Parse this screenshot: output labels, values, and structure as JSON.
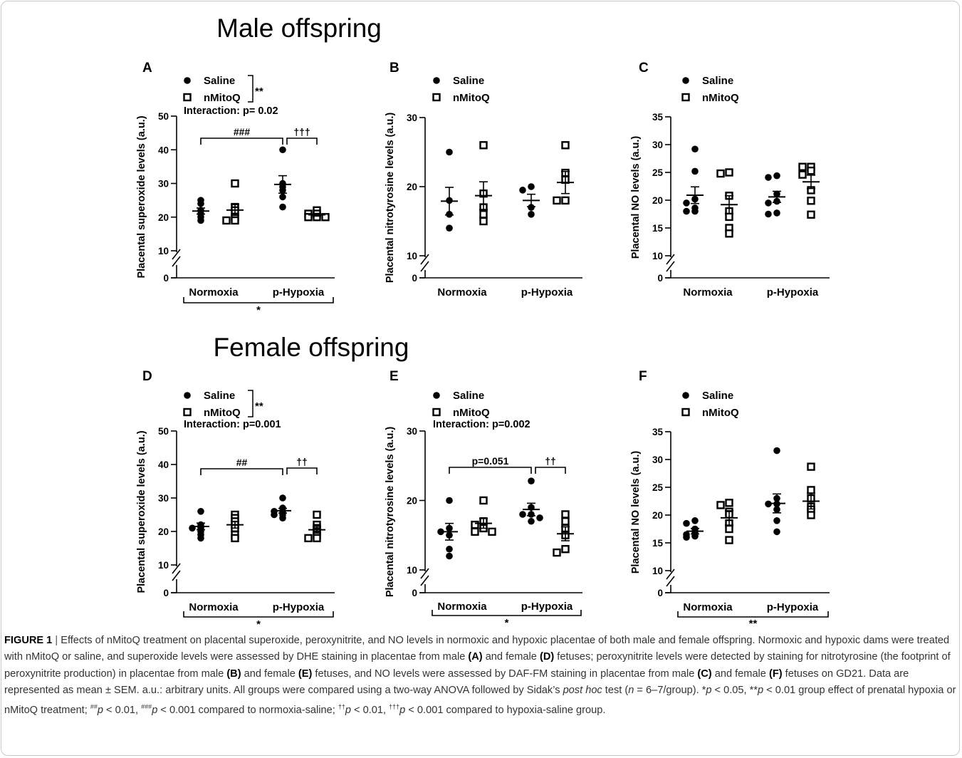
{
  "figure": {
    "sections": [
      "Male offspring",
      "Female offspring"
    ],
    "caption_label": "FIGURE 1",
    "caption_sep": "|",
    "caption_parts": [
      {
        "t": " Effects of nMitoQ treatment on placental superoxide, peroxynitrite, and NO levels in normoxic and hypoxic placentae of both male and female offspring. Normoxic and hypoxic dams were treated with nMitoQ or saline, and superoxide levels were assessed by DHE staining in placentae from male "
      },
      {
        "b": "(A)"
      },
      {
        "t": " and female "
      },
      {
        "b": "(D)"
      },
      {
        "t": " fetuses; peroxynitrite levels were detected by staining for nitrotyrosine (the footprint of peroxynitrite production) in placentae from male "
      },
      {
        "b": "(B)"
      },
      {
        "t": " and female "
      },
      {
        "b": "(E)"
      },
      {
        "t": " fetuses, and NO levels were assessed by DAF-FM staining in placentae from male "
      },
      {
        "b": "(C)"
      },
      {
        "t": " and female "
      },
      {
        "b": "(F)"
      },
      {
        "t": " fetuses on GD21. Data are represented as mean ± SEM. a.u.: arbitrary units. All groups were compared using a two-way ANOVA followed by Sidak’s "
      },
      {
        "i": "post hoc"
      },
      {
        "t": " test ("
      },
      {
        "i": "n"
      },
      {
        "t": " = 6–7/group). *"
      },
      {
        "i": "p"
      },
      {
        "t": " < 0.05, **"
      },
      {
        "i": "p"
      },
      {
        "t": " < 0.01 group effect of prenatal hypoxia or nMitoQ treatment; "
      },
      {
        "sup": "##"
      },
      {
        "i": "p"
      },
      {
        "t": " < 0.01, "
      },
      {
        "sup": "###"
      },
      {
        "i": "p"
      },
      {
        "t": " < 0.001 compared to normoxia-saline; "
      },
      {
        "sup": "††"
      },
      {
        "i": "p"
      },
      {
        "t": " < 0.01, "
      },
      {
        "sup": "†††"
      },
      {
        "i": "p"
      },
      {
        "t": " < 0.001 compared to hypoxia-saline group."
      }
    ]
  },
  "chart_data": [
    {
      "panel": "A",
      "type": "scatter",
      "section": "Male offspring",
      "ylabel": "Placental superoxide levels (a.u.)",
      "categories": [
        "Normoxia",
        "p-Hypoxia"
      ],
      "yticks": [
        0,
        10,
        20,
        30,
        40,
        50
      ],
      "axis_break": true,
      "legend": [
        "Saline",
        "nMitoQ"
      ],
      "legend_stat": "**",
      "interaction": "Interaction: p= 0.02",
      "series": [
        {
          "name": "Saline",
          "marker": "filled-circle",
          "groups": [
            {
              "category": "Normoxia",
              "points": [
                25,
                24,
                22,
                21,
                20,
                19
              ],
              "mean": 21.8,
              "sem": 0.9
            },
            {
              "category": "p-Hypoxia",
              "points": [
                40,
                30,
                29,
                28,
                26,
                23
              ],
              "mean": 29.7,
              "sem": 2.6
            }
          ]
        },
        {
          "name": "nMitoQ",
          "marker": "open-square",
          "groups": [
            {
              "category": "Normoxia",
              "points": [
                30,
                23,
                22,
                20,
                19,
                19
              ],
              "mean": 22.1,
              "sem": 1.6
            },
            {
              "category": "p-Hypoxia",
              "points": [
                22,
                21,
                21,
                20,
                20,
                20
              ],
              "mean": 20.7,
              "sem": 0.4
            }
          ]
        }
      ],
      "brackets": [
        {
          "label": "###",
          "from": "Normoxia-Saline",
          "to": "p-Hypoxia-Saline"
        },
        {
          "label": "†††",
          "from": "p-Hypoxia-Saline",
          "to": "p-Hypoxia-nMitoQ"
        }
      ],
      "group_stat": "*"
    },
    {
      "panel": "B",
      "type": "scatter",
      "section": "Male offspring",
      "ylabel": "Placental nitrotyrosine levels (a.u.)",
      "categories": [
        "Normoxia",
        "p-Hypoxia"
      ],
      "yticks": [
        0,
        10,
        20,
        30
      ],
      "axis_break": true,
      "legend": [
        "Saline",
        "nMitoQ"
      ],
      "series": [
        {
          "name": "Saline",
          "marker": "filled-circle",
          "groups": [
            {
              "category": "Normoxia",
              "points": [
                25,
                18,
                16,
                14
              ],
              "mean": 17.9,
              "sem": 2.0
            },
            {
              "category": "p-Hypoxia",
              "points": [
                20,
                19.5,
                17,
                16
              ],
              "mean": 18.0,
              "sem": 0.9
            }
          ]
        },
        {
          "name": "nMitoQ",
          "marker": "open-square",
          "groups": [
            {
              "category": "Normoxia",
              "points": [
                26,
                19,
                17,
                16,
                15
              ],
              "mean": 18.7,
              "sem": 2.0
            },
            {
              "category": "p-Hypoxia",
              "points": [
                26,
                22,
                21,
                18,
                18
              ],
              "mean": 20.6,
              "sem": 1.6
            }
          ]
        }
      ]
    },
    {
      "panel": "C",
      "type": "scatter",
      "section": "Male offspring",
      "ylabel": "Placental NO levels (a.u.)",
      "categories": [
        "Normoxia",
        "p-Hypoxia"
      ],
      "yticks": [
        0,
        10,
        15,
        20,
        25,
        30,
        35
      ],
      "axis_break": true,
      "legend": [
        "Saline",
        "nMitoQ"
      ],
      "series": [
        {
          "name": "Saline",
          "marker": "filled-circle",
          "groups": [
            {
              "category": "Normoxia",
              "points": [
                29.2,
                25.2,
                20.2,
                19.5,
                18.6,
                18.0,
                18.0
              ],
              "mean": 20.9,
              "sem": 1.5
            },
            {
              "category": "p-Hypoxia",
              "points": [
                24.4,
                24.1,
                21.1,
                19.8,
                19.5,
                17.7,
                17.5
              ],
              "mean": 20.6,
              "sem": 1.0
            }
          ]
        },
        {
          "name": "nMitoQ",
          "marker": "open-square",
          "groups": [
            {
              "category": "Normoxia",
              "points": [
                25.0,
                24.8,
                20.8,
                18.0,
                17.0,
                15.0,
                14.0
              ],
              "mean": 19.2,
              "sem": 1.6
            },
            {
              "category": "p-Hypoxia",
              "points": [
                26.0,
                26.0,
                25.3,
                24.6,
                21.8,
                19.9,
                17.4
              ],
              "mean": 23.3,
              "sem": 1.2
            }
          ]
        }
      ]
    },
    {
      "panel": "D",
      "type": "scatter",
      "section": "Female offspring",
      "ylabel": "Placental superoxide levels (a.u.)",
      "categories": [
        "Normoxia",
        "p-Hypoxia"
      ],
      "yticks": [
        0,
        10,
        20,
        30,
        40,
        50
      ],
      "axis_break": true,
      "legend": [
        "Saline",
        "nMitoQ"
      ],
      "legend_stat": "**",
      "interaction": "Interaction: p=0.001",
      "series": [
        {
          "name": "Saline",
          "marker": "filled-circle",
          "groups": [
            {
              "category": "Normoxia",
              "points": [
                26,
                22,
                21,
                21,
                20,
                19,
                18
              ],
              "mean": 21.5,
              "sem": 1.0
            },
            {
              "category": "p-Hypoxia",
              "points": [
                30,
                27,
                26,
                26,
                25,
                25,
                24
              ],
              "mean": 26.2,
              "sem": 0.7
            }
          ]
        },
        {
          "name": "nMitoQ",
          "marker": "open-square",
          "groups": [
            {
              "category": "Normoxia",
              "points": [
                25,
                24,
                23,
                22,
                21,
                19,
                18
              ],
              "mean": 22.0,
              "sem": 1.0
            },
            {
              "category": "p-Hypoxia",
              "points": [
                25,
                22,
                21,
                20,
                19,
                18,
                18
              ],
              "mean": 20.5,
              "sem": 1.0
            }
          ]
        }
      ],
      "brackets": [
        {
          "label": "##",
          "from": "Normoxia-Saline",
          "to": "p-Hypoxia-Saline"
        },
        {
          "label": "††",
          "from": "p-Hypoxia-Saline",
          "to": "p-Hypoxia-nMitoQ"
        }
      ],
      "group_stat": "*"
    },
    {
      "panel": "E",
      "type": "scatter",
      "section": "Female offspring",
      "ylabel": "Placental nitrotyrosine levels (a.u.)",
      "categories": [
        "Normoxia",
        "p-Hypoxia"
      ],
      "yticks": [
        0,
        10,
        20,
        30
      ],
      "axis_break": true,
      "legend": [
        "Saline",
        "nMitoQ"
      ],
      "interaction": "Interaction: p=0.002",
      "series": [
        {
          "name": "Saline",
          "marker": "filled-circle",
          "groups": [
            {
              "category": "Normoxia",
              "points": [
                20,
                16,
                15.5,
                15,
                13,
                12
              ],
              "mean": 15.5,
              "sem": 1.2
            },
            {
              "category": "p-Hypoxia",
              "points": [
                22.8,
                19,
                18,
                18,
                17.5,
                17
              ],
              "mean": 18.7,
              "sem": 0.9
            }
          ]
        },
        {
          "name": "nMitoQ",
          "marker": "open-square",
          "groups": [
            {
              "category": "Normoxia",
              "points": [
                20,
                17,
                16.5,
                16,
                15.5,
                15.5
              ],
              "mean": 16.7,
              "sem": 0.7
            },
            {
              "category": "p-Hypoxia",
              "points": [
                18,
                17,
                16,
                15,
                13,
                12.5
              ],
              "mean": 15.2,
              "sem": 1.0
            }
          ]
        }
      ],
      "brackets": [
        {
          "label": "p=0.051",
          "from": "Normoxia-Saline",
          "to": "p-Hypoxia-Saline"
        },
        {
          "label": "††",
          "from": "p-Hypoxia-Saline",
          "to": "p-Hypoxia-nMitoQ"
        }
      ],
      "group_stat": "*"
    },
    {
      "panel": "F",
      "type": "scatter",
      "section": "Female offspring",
      "ylabel": "Placental NO levels (a.u.)",
      "categories": [
        "Normoxia",
        "p-Hypoxia"
      ],
      "yticks": [
        0,
        10,
        15,
        20,
        25,
        30,
        35
      ],
      "axis_break": true,
      "legend": [
        "Saline",
        "nMitoQ"
      ],
      "series": [
        {
          "name": "Saline",
          "marker": "filled-circle",
          "groups": [
            {
              "category": "Normoxia",
              "points": [
                19,
                18.5,
                17.5,
                16.8,
                16.5,
                16.2,
                16
              ],
              "mean": 17.1,
              "sem": 0.5
            },
            {
              "category": "p-Hypoxia",
              "points": [
                31.6,
                23,
                22,
                22,
                21,
                19,
                17
              ],
              "mean": 22.1,
              "sem": 1.7
            }
          ]
        },
        {
          "name": "nMitoQ",
          "marker": "open-square",
          "groups": [
            {
              "category": "Normoxia",
              "points": [
                22.2,
                21.8,
                20.6,
                20.1,
                18.5,
                17.5,
                15.5
              ],
              "mean": 19.5,
              "sem": 1.3
            },
            {
              "category": "p-Hypoxia",
              "points": [
                28.7,
                24.5,
                23,
                21.5,
                21,
                20
              ],
              "mean": 22.5,
              "sem": 1.4
            }
          ]
        }
      ],
      "group_stat": "**"
    }
  ]
}
